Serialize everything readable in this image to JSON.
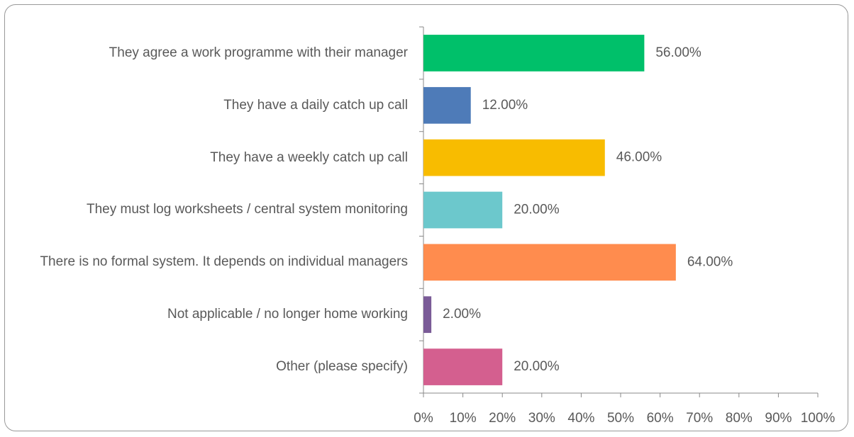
{
  "chart_data": {
    "type": "bar",
    "orientation": "horizontal",
    "categories": [
      "They agree a work programme with their manager",
      "They have a daily catch up call",
      "They have a weekly catch up call",
      "They must log worksheets / central system monitoring",
      "There is no formal system. It depends on individual managers",
      "Not applicable / no longer home working",
      "Other (please specify)"
    ],
    "values": [
      56,
      12,
      46,
      20,
      64,
      2,
      20
    ],
    "value_labels": [
      "56.00%",
      "12.00%",
      "46.00%",
      "20.00%",
      "64.00%",
      "2.00%",
      "20.00%"
    ],
    "colors": [
      "#00c06a",
      "#4e7bb8",
      "#f8bc00",
      "#6cc8cc",
      "#ff8c4e",
      "#7a5b97",
      "#d45f8f"
    ],
    "xlim": [
      0,
      100
    ],
    "xticks": [
      {
        "value": 0,
        "label": "0%"
      },
      {
        "value": 10,
        "label": "10%"
      },
      {
        "value": 20,
        "label": "20%"
      },
      {
        "value": 30,
        "label": "30%"
      },
      {
        "value": 40,
        "label": "40%"
      },
      {
        "value": 50,
        "label": "50%"
      },
      {
        "value": 60,
        "label": "60%"
      },
      {
        "value": 70,
        "label": "70%"
      },
      {
        "value": 80,
        "label": "80%"
      },
      {
        "value": 90,
        "label": "90%"
      },
      {
        "value": 100,
        "label": "100%"
      }
    ],
    "grid": false
  }
}
